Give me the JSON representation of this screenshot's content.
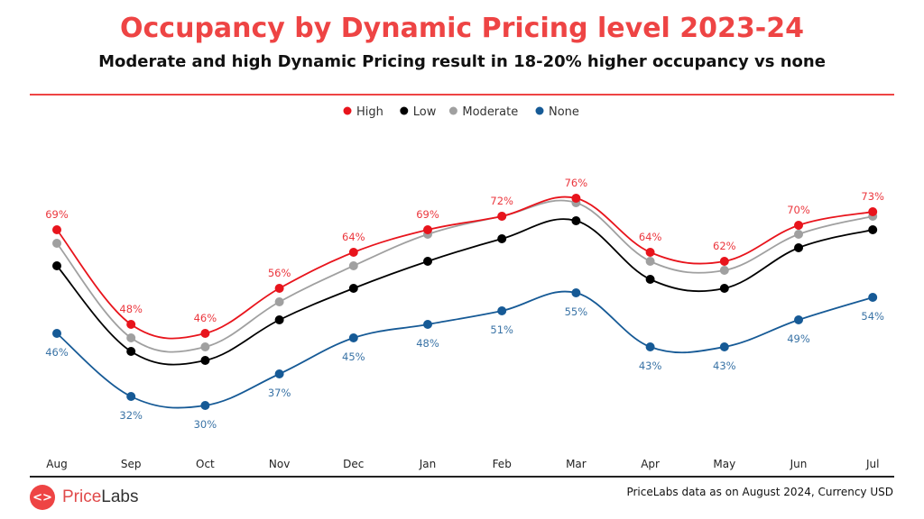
{
  "chart_data": {
    "type": "line",
    "title": "Occupancy by Dynamic Pricing level 2023-24",
    "subtitle": "Moderate and high Dynamic Pricing result in 18-20% higher occupancy vs none",
    "categories": [
      "Aug",
      "Sep",
      "Oct",
      "Nov",
      "Dec",
      "Jan",
      "Feb",
      "Mar",
      "Apr",
      "May",
      "Jun",
      "Jul"
    ],
    "legend_position": "top",
    "grid": false,
    "value_suffix": "%",
    "series": [
      {
        "name": "High",
        "color": "#e8141c",
        "values": [
          69,
          48,
          46,
          56,
          64,
          69,
          72,
          76,
          64,
          62,
          70,
          73
        ],
        "labels": true,
        "label_position": "above"
      },
      {
        "name": "Low",
        "color": "#000000",
        "values": [
          61,
          42,
          40,
          49,
          56,
          62,
          67,
          71,
          58,
          56,
          65,
          69
        ],
        "labels": false
      },
      {
        "name": "Moderate",
        "color": "#a0a0a0",
        "values": [
          66,
          45,
          43,
          53,
          61,
          68,
          72,
          75,
          62,
          60,
          68,
          72
        ],
        "labels": false
      },
      {
        "name": "None",
        "color": "#165a96",
        "values": [
          46,
          32,
          30,
          37,
          45,
          48,
          51,
          55,
          43,
          43,
          49,
          54
        ],
        "labels": true,
        "label_position": "below"
      }
    ]
  },
  "footer": {
    "brand_a": "Price",
    "brand_b": "Labs",
    "logo_glyph": "<>",
    "source": "PriceLabs data as on August 2024, Currency USD"
  }
}
